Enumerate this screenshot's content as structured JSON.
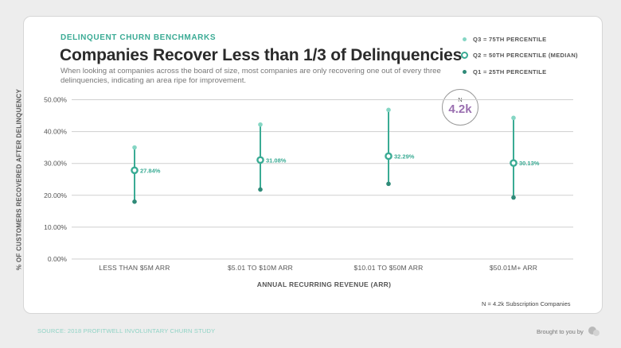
{
  "header": {
    "eyebrow": "DELINQUENT CHURN BENCHMARKS",
    "title": "Companies Recover Less than 1/3 of Delinquencies",
    "subtitle": "When looking at companies across the board of size, most companies are only recovering one out of every three delinquencies, indicating an area ripe for improvement."
  },
  "legend": {
    "items": [
      {
        "label": "Q3 = 75TH PERCENTILE",
        "marker": "small-dot",
        "color": "#85d6c4"
      },
      {
        "label": "Q2 = 50TH PERCENTILE (MEDIAN)",
        "marker": "ring",
        "color": "#3aab94"
      },
      {
        "label": "Q1 = 25TH PERCENTILE",
        "marker": "small-dot",
        "color": "#2f8a78"
      }
    ]
  },
  "badge": {
    "label": "N",
    "value": "4.2k"
  },
  "footer": {
    "sample_note": "N = 4.2k Subscription Companies",
    "source": "SOURCE: 2018 PROFITWELL INVOLUNTARY CHURN STUDY",
    "brought_by": "Brought to you by"
  },
  "chart_data": {
    "type": "scatter",
    "xlabel": "ANNUAL RECURRING REVENUE (ARR)",
    "ylabel": "% OF CUSTOMERS RECOVERED AFTER DELINQUENCY",
    "ylim": [
      0,
      50
    ],
    "yticks": [
      0,
      10,
      20,
      30,
      40,
      50
    ],
    "ytick_labels": [
      "0.00%",
      "10.00%",
      "20.00%",
      "30.00%",
      "40.00%",
      "50.00%"
    ],
    "grid": true,
    "categories": [
      "LESS THAN $5M ARR",
      "$5.01 TO $10M ARR",
      "$10.01 TO $50M ARR",
      "$50.01M+ ARR"
    ],
    "series": [
      {
        "name": "Q3 = 75TH PERCENTILE",
        "values": [
          35,
          42.2,
          46.8,
          44.3
        ]
      },
      {
        "name": "Q2 = 50TH PERCENTILE (MEDIAN)",
        "values": [
          27.84,
          31.08,
          32.29,
          30.13
        ]
      },
      {
        "name": "Q1 = 25TH PERCENTILE",
        "values": [
          18,
          21.8,
          23.6,
          19.3
        ]
      }
    ],
    "median_labels": [
      "27.84%",
      "31.08%",
      "32.29%",
      "30.13%"
    ],
    "colors": {
      "q3": "#85d6c4",
      "median": "#3aab94",
      "q1": "#2f8a78",
      "range_line": "#3aab94",
      "grid": "#cfcfcf",
      "label": "#3aab94"
    }
  }
}
